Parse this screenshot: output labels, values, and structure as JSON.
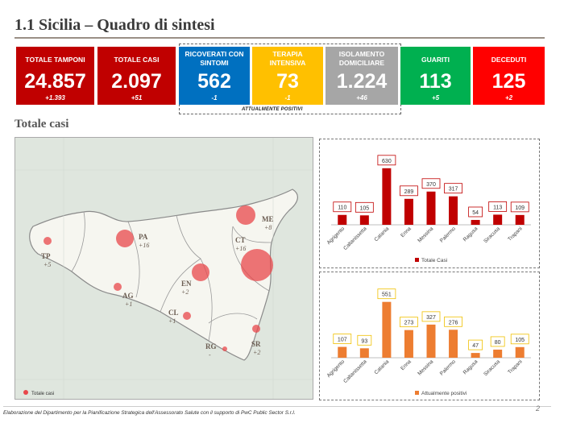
{
  "title": "1.1 Sicilia – Quadro di sintesi",
  "kpis": [
    {
      "label": "TOTALE TAMPONI",
      "value": "24.857",
      "delta": "+1.393",
      "color": "#c00000"
    },
    {
      "label": "TOTALE CASI",
      "value": "2.097",
      "delta": "+51",
      "color": "#c00000"
    },
    {
      "label": "RICOVERATI CON SINTOMI",
      "value": "562",
      "delta": "-1",
      "color": "#0070c0"
    },
    {
      "label": "TERAPIA INTENSIVA",
      "value": "73",
      "delta": "-1",
      "color": "#ffc000"
    },
    {
      "label": "ISOLAMENTO DOMICILIARE",
      "value": "1.224",
      "delta": "+46",
      "color": "#a6a6a6"
    },
    {
      "label": "GUARITI",
      "value": "113",
      "delta": "+5",
      "color": "#00b050"
    },
    {
      "label": "DECEDUTI",
      "value": "125",
      "delta": "+2",
      "color": "#ff0000"
    }
  ],
  "positives_label": "ATTUALMENTE POSITIVI",
  "section_title": "Totale casi",
  "map": {
    "legend": "Totale casi",
    "provinces": [
      {
        "code": "TP",
        "delta": "+5"
      },
      {
        "code": "PA",
        "delta": "+16"
      },
      {
        "code": "ME",
        "delta": "+8"
      },
      {
        "code": "CT",
        "delta": "+16"
      },
      {
        "code": "EN",
        "delta": "+2"
      },
      {
        "code": "AG",
        "delta": "+1"
      },
      {
        "code": "CL",
        "delta": "+1"
      },
      {
        "code": "RG",
        "delta": "-"
      },
      {
        "code": "SR",
        "delta": "+2"
      }
    ]
  },
  "chart_data": [
    {
      "type": "bar",
      "categories": [
        "Agrigento",
        "Caltanissetta",
        "Catania",
        "Enna",
        "Messina",
        "Palermo",
        "Ragusa",
        "Siracusa",
        "Trapani"
      ],
      "series": [
        {
          "name": "Totale Casi",
          "values": [
            110,
            105,
            630,
            289,
            370,
            317,
            54,
            113,
            109
          ]
        }
      ],
      "color": "#c00000",
      "ylim": [
        0,
        700
      ]
    },
    {
      "type": "bar",
      "categories": [
        "Agrigento",
        "Caltanissetta",
        "Catania",
        "Enna",
        "Messina",
        "Palermo",
        "Ragusa",
        "Siracusa",
        "Trapani"
      ],
      "series": [
        {
          "name": "Attualmente positivi",
          "values": [
            107,
            93,
            551,
            273,
            327,
            276,
            47,
            80,
            105
          ]
        }
      ],
      "color": "#ed7d31",
      "ylim": [
        0,
        620
      ]
    }
  ],
  "footer": "Elaborazione del Dipartimento per la Pianificazione Strategica dell'Assessorato Salute con il supporto di PwC Public Sector S.r.l.",
  "page_number": "2"
}
